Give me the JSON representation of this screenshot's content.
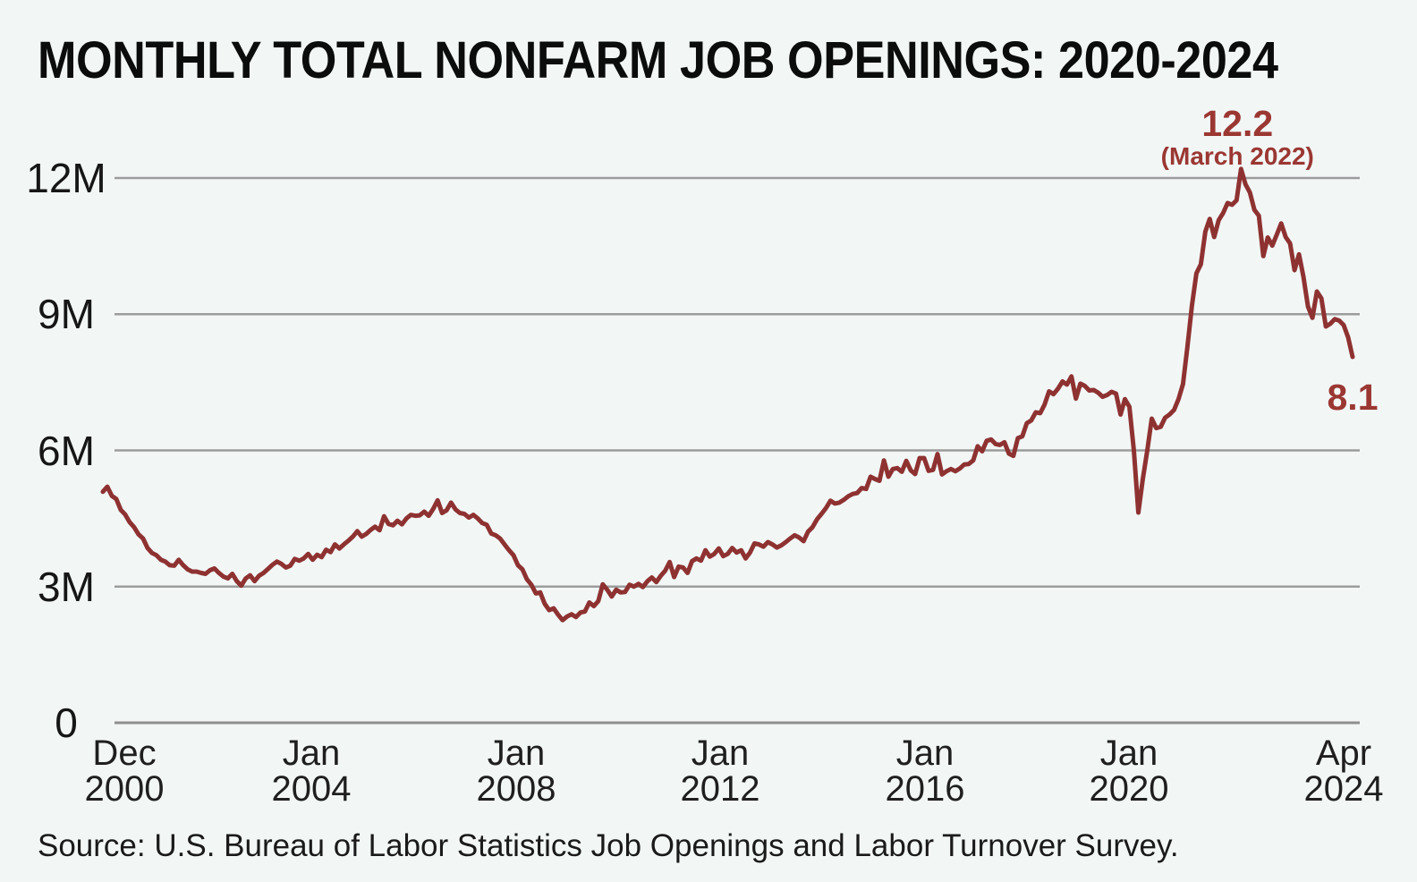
{
  "title": "MONTHLY TOTAL NONFARM JOB OPENINGS: 2020-2024",
  "source": "Source: U.S. Bureau of Labor Statistics Job Openings and Labor Turnover Survey.",
  "colors": {
    "background": "#F2F7F6",
    "line": "#8E3231",
    "annotation_text": "#9B3732",
    "gridline": "#9c9c9c",
    "zero_line": "#8f8f8f",
    "title_text": "#0b0c0c",
    "axis_text": "#1f1f1f"
  },
  "annotations": {
    "peak": {
      "value": "12.2",
      "date": "(March 2022)",
      "month": "2022-03",
      "series_value": 12.2
    },
    "latest": {
      "value": "8.1",
      "month": "2024-04",
      "series_value": 8.06
    }
  },
  "chart_data": {
    "type": "line",
    "series_name": "Monthly total nonfarm job openings",
    "unit": "millions",
    "frequency": "monthly",
    "x_start": "2000-12",
    "x_end": "2024-04",
    "ylim": [
      0,
      12.8
    ],
    "grid": "horizontal",
    "legend": "none",
    "y_ticks": [
      {
        "label": "12M",
        "value": 12
      },
      {
        "label": "9M",
        "value": 9
      },
      {
        "label": "6M",
        "value": 6
      },
      {
        "label": "3M",
        "value": 3
      },
      {
        "label": "0",
        "value": 0
      }
    ],
    "x_tick_labels": [
      [
        "Dec",
        "2000"
      ],
      [
        "Jan",
        "2004"
      ],
      [
        "Jan",
        "2008"
      ],
      [
        "Jan",
        "2012"
      ],
      [
        "Jan",
        "2016"
      ],
      [
        "Jan",
        "2020"
      ],
      [
        "Apr",
        "2024"
      ]
    ],
    "values": [
      5.09,
      5.2,
      5.0,
      4.93,
      4.69,
      4.59,
      4.42,
      4.31,
      4.15,
      4.06,
      3.85,
      3.74,
      3.69,
      3.59,
      3.55,
      3.47,
      3.46,
      3.59,
      3.47,
      3.38,
      3.33,
      3.33,
      3.3,
      3.28,
      3.36,
      3.4,
      3.3,
      3.22,
      3.18,
      3.28,
      3.12,
      3.02,
      3.18,
      3.25,
      3.12,
      3.24,
      3.3,
      3.39,
      3.48,
      3.55,
      3.5,
      3.42,
      3.46,
      3.61,
      3.57,
      3.62,
      3.72,
      3.59,
      3.7,
      3.65,
      3.81,
      3.76,
      3.93,
      3.84,
      3.93,
      4.01,
      4.1,
      4.22,
      4.1,
      4.16,
      4.25,
      4.32,
      4.24,
      4.55,
      4.38,
      4.35,
      4.45,
      4.37,
      4.5,
      4.58,
      4.56,
      4.57,
      4.65,
      4.56,
      4.71,
      4.9,
      4.62,
      4.68,
      4.85,
      4.7,
      4.62,
      4.6,
      4.52,
      4.58,
      4.5,
      4.4,
      4.36,
      4.17,
      4.13,
      4.06,
      3.93,
      3.8,
      3.69,
      3.47,
      3.38,
      3.16,
      3.04,
      2.85,
      2.87,
      2.62,
      2.48,
      2.52,
      2.38,
      2.26,
      2.34,
      2.39,
      2.33,
      2.43,
      2.45,
      2.65,
      2.57,
      2.68,
      3.05,
      2.93,
      2.78,
      2.93,
      2.87,
      2.88,
      3.04,
      3.0,
      3.06,
      2.99,
      3.12,
      3.2,
      3.1,
      3.24,
      3.35,
      3.54,
      3.21,
      3.44,
      3.42,
      3.3,
      3.56,
      3.62,
      3.57,
      3.8,
      3.66,
      3.72,
      3.84,
      3.67,
      3.72,
      3.85,
      3.75,
      3.8,
      3.62,
      3.75,
      3.95,
      3.93,
      3.88,
      3.98,
      3.93,
      3.86,
      3.91,
      3.98,
      4.06,
      4.13,
      4.08,
      4.0,
      4.21,
      4.31,
      4.48,
      4.6,
      4.73,
      4.89,
      4.83,
      4.85,
      4.91,
      4.99,
      5.04,
      5.06,
      5.17,
      5.15,
      5.42,
      5.37,
      5.33,
      5.78,
      5.42,
      5.59,
      5.61,
      5.53,
      5.77,
      5.56,
      5.48,
      5.83,
      5.83,
      5.55,
      5.57,
      5.92,
      5.47,
      5.54,
      5.59,
      5.54,
      5.6,
      5.69,
      5.7,
      5.78,
      6.09,
      5.98,
      6.21,
      6.24,
      6.14,
      6.12,
      6.18,
      5.93,
      5.88,
      6.27,
      6.31,
      6.6,
      6.66,
      6.84,
      6.82,
      7.01,
      7.3,
      7.24,
      7.36,
      7.52,
      7.45,
      7.63,
      7.14,
      7.47,
      7.42,
      7.32,
      7.33,
      7.27,
      7.18,
      7.22,
      7.29,
      7.25,
      6.79,
      7.13,
      6.96,
      6.0,
      4.63,
      5.37,
      6.0,
      6.7,
      6.49,
      6.52,
      6.72,
      6.79,
      6.89,
      7.13,
      7.46,
      8.29,
      9.19,
      9.9,
      10.1,
      10.82,
      11.1,
      10.7,
      11.07,
      11.23,
      11.45,
      11.41,
      11.51,
      12.2,
      11.86,
      11.68,
      11.3,
      11.17,
      10.28,
      10.69,
      10.51,
      10.75,
      11.0,
      10.7,
      10.56,
      9.97,
      10.32,
      9.82,
      9.17,
      8.92,
      9.5,
      9.35,
      8.73,
      8.79,
      8.89,
      8.86,
      8.76,
      8.49,
      8.06
    ]
  }
}
